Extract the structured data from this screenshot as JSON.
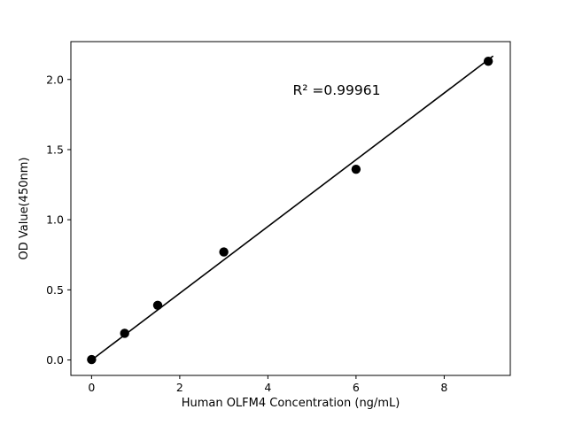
{
  "chart_data": {
    "type": "scatter",
    "title": "",
    "xlabel": "Human OLFM4 Concentration (ng/mL)",
    "ylabel": "OD Value(450nm)",
    "annotation": "R² =0.99961",
    "x": [
      0,
      0.75,
      1.5,
      3,
      6,
      9
    ],
    "y": [
      0.003,
      0.19,
      0.39,
      0.77,
      1.36,
      2.13
    ],
    "fit_line": {
      "x": [
        0,
        9.1
      ],
      "y": [
        0.0,
        2.165
      ]
    },
    "xlim": [
      -0.47,
      9.5
    ],
    "ylim": [
      -0.11,
      2.27
    ],
    "xticks": {
      "values": [
        0,
        2,
        4,
        6,
        8
      ],
      "labels": [
        "0",
        "2",
        "4",
        "6",
        "8"
      ]
    },
    "yticks": {
      "values": [
        0.0,
        0.5,
        1.0,
        1.5,
        2.0
      ],
      "labels": [
        "0.0",
        "0.5",
        "1.0",
        "1.5",
        "2.0"
      ]
    },
    "grid": false,
    "legend": null,
    "point_color": "#000000",
    "line_color": "#000000",
    "background": "#ffffff"
  }
}
